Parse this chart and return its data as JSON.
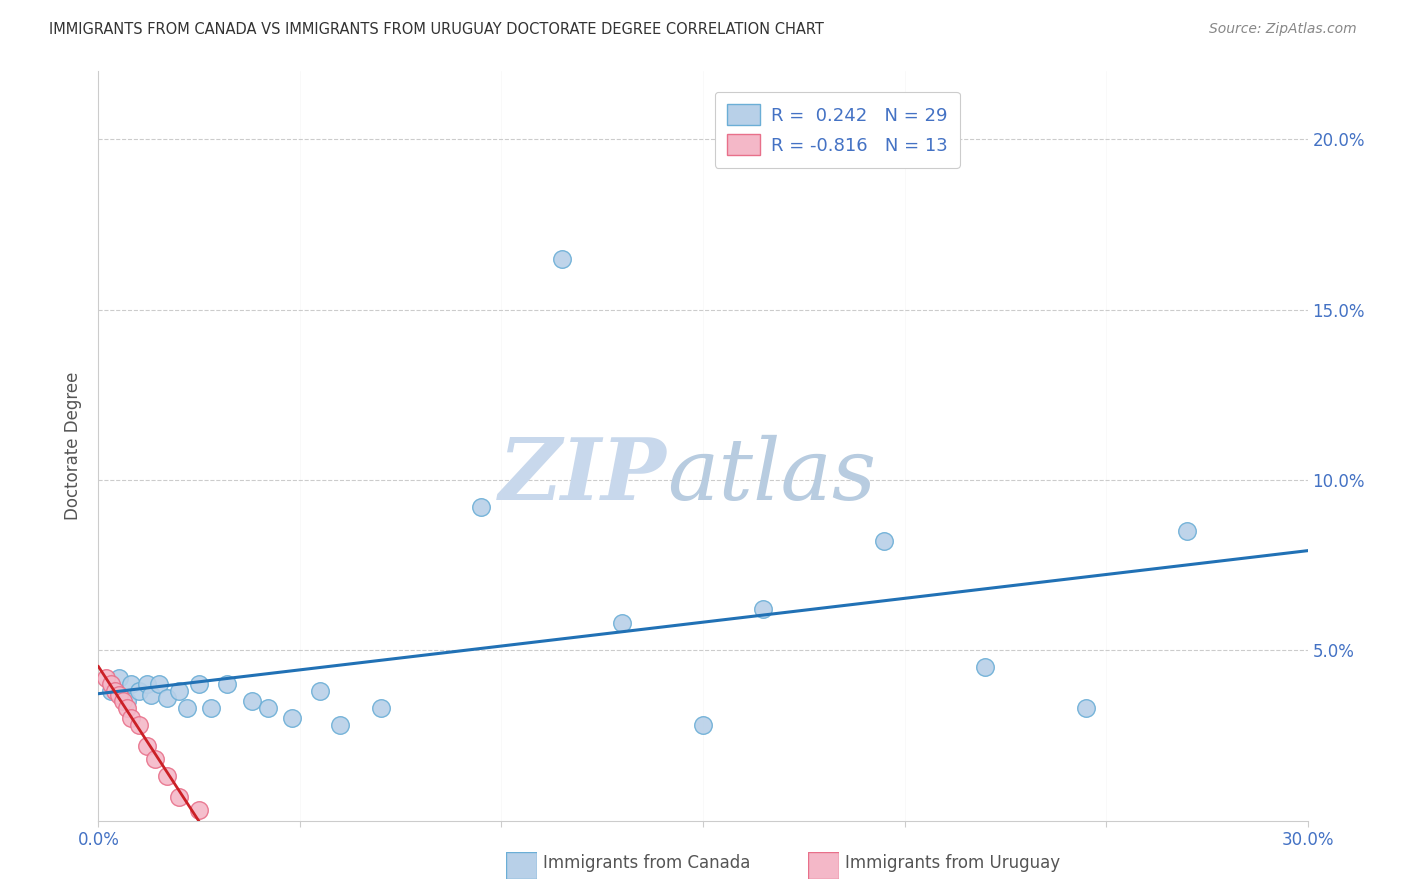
{
  "title": "IMMIGRANTS FROM CANADA VS IMMIGRANTS FROM URUGUAY DOCTORATE DEGREE CORRELATION CHART",
  "source": "Source: ZipAtlas.com",
  "ylabel_label": "Doctorate Degree",
  "xlim": [
    0.0,
    0.3
  ],
  "ylim": [
    0.0,
    0.22
  ],
  "xticks": [
    0.0,
    0.05,
    0.1,
    0.15,
    0.2,
    0.25,
    0.3
  ],
  "yticks": [
    0.0,
    0.05,
    0.1,
    0.15,
    0.2
  ],
  "xtick_labels": [
    "0.0%",
    "",
    "",
    "",
    "",
    "",
    "30.0%"
  ],
  "ytick_labels_right": [
    "",
    "5.0%",
    "10.0%",
    "15.0%",
    "20.0%"
  ],
  "canada_color": "#b8d0e8",
  "canada_edge_color": "#6baed6",
  "uruguay_color": "#f4b8c8",
  "uruguay_edge_color": "#e8708a",
  "line_canada_color": "#2171b5",
  "line_uruguay_color": "#cb2026",
  "R_canada": 0.242,
  "N_canada": 29,
  "R_uruguay": -0.816,
  "N_uruguay": 13,
  "canada_x": [
    0.003,
    0.005,
    0.007,
    0.008,
    0.01,
    0.012,
    0.013,
    0.015,
    0.017,
    0.02,
    0.022,
    0.025,
    0.028,
    0.032,
    0.038,
    0.042,
    0.048,
    0.055,
    0.06,
    0.07,
    0.095,
    0.115,
    0.13,
    0.15,
    0.165,
    0.195,
    0.22,
    0.245,
    0.27
  ],
  "canada_y": [
    0.038,
    0.042,
    0.035,
    0.04,
    0.038,
    0.04,
    0.037,
    0.04,
    0.036,
    0.038,
    0.033,
    0.04,
    0.033,
    0.04,
    0.035,
    0.033,
    0.03,
    0.038,
    0.028,
    0.033,
    0.092,
    0.165,
    0.058,
    0.028,
    0.062,
    0.082,
    0.045,
    0.033,
    0.085
  ],
  "uruguay_x": [
    0.002,
    0.003,
    0.004,
    0.005,
    0.006,
    0.007,
    0.008,
    0.01,
    0.012,
    0.014,
    0.017,
    0.02,
    0.025
  ],
  "uruguay_y": [
    0.042,
    0.04,
    0.038,
    0.037,
    0.035,
    0.033,
    0.03,
    0.028,
    0.022,
    0.018,
    0.013,
    0.007,
    0.003
  ],
  "watermark_zip_color": "#c8d8ec",
  "watermark_atlas_color": "#b0c8e4",
  "legend_label_canada": "Immigrants from Canada",
  "legend_label_uruguay": "Immigrants from Uruguay",
  "grid_color": "#cccccc",
  "axis_color": "#cccccc",
  "tick_color": "#4472c4",
  "ylabel_color": "#555555",
  "title_color": "#333333",
  "source_color": "#888888"
}
